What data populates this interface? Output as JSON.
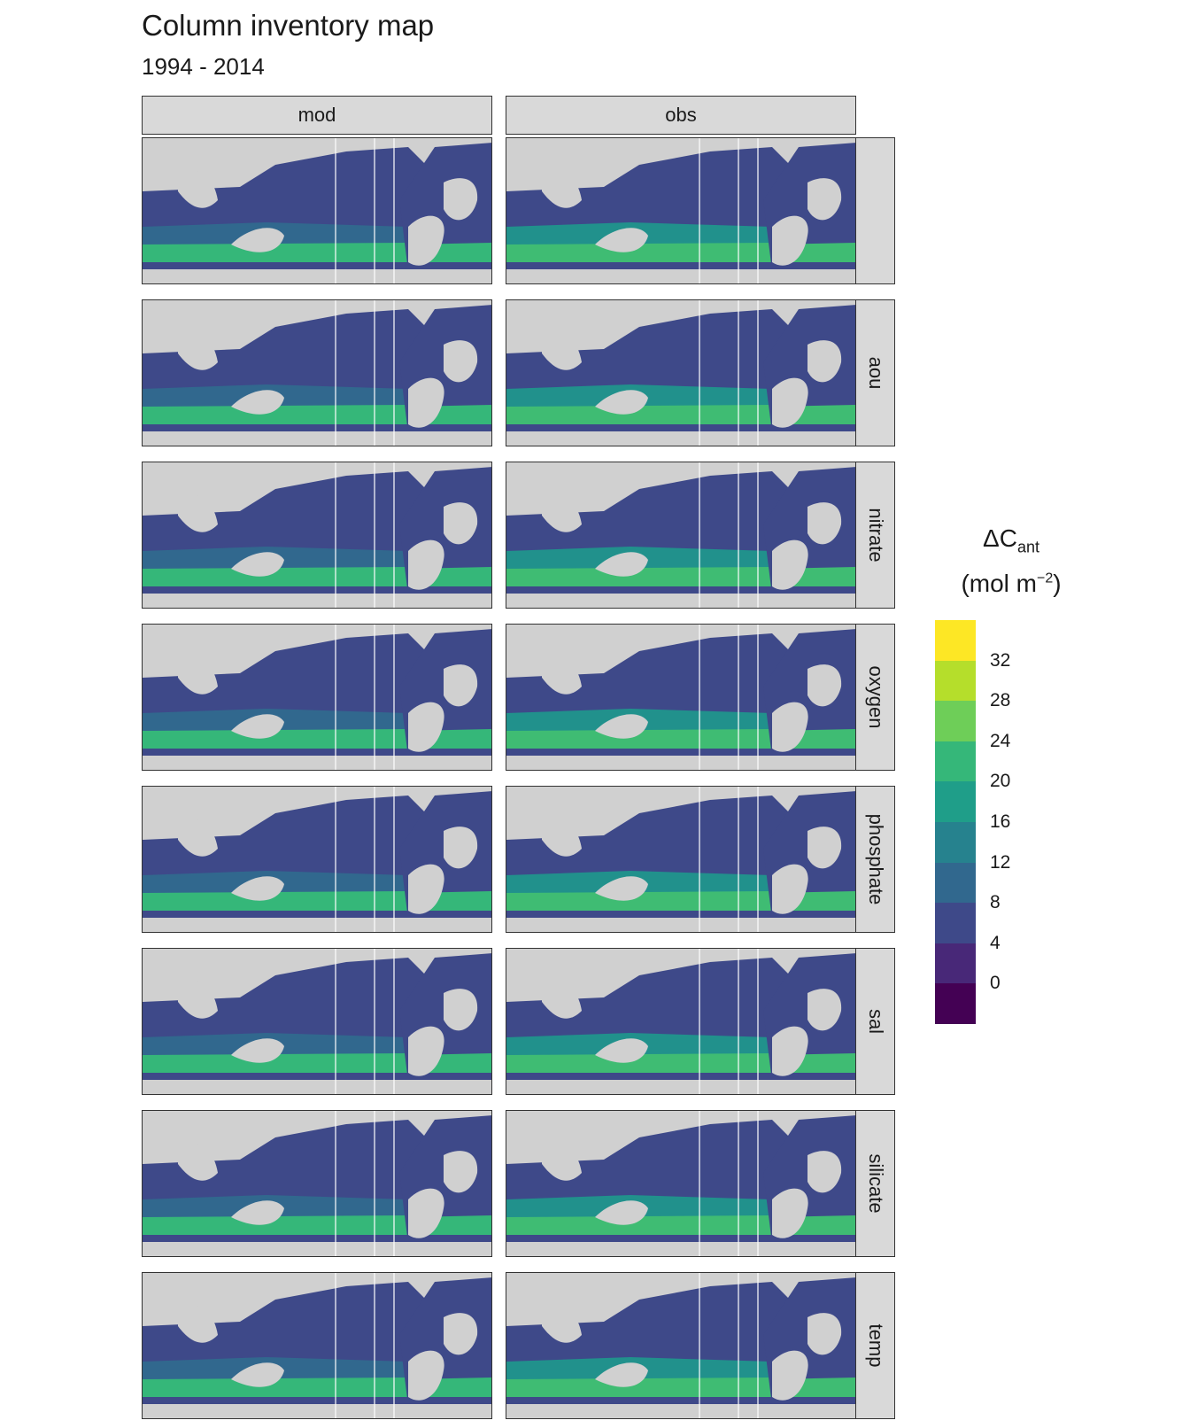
{
  "title": "Column inventory map",
  "subtitle": "1994 - 2014",
  "columns": [
    "mod",
    "obs"
  ],
  "rows": [
    "",
    "aou",
    "nitrate",
    "oxygen",
    "phosphate",
    "sal",
    "silicate",
    "temp"
  ],
  "legend": {
    "title_main": "ΔC",
    "title_sub": "ant",
    "unit_prefix": "(mol m",
    "unit_sup": "−2",
    "unit_suffix": ")",
    "ticks": [
      "32",
      "28",
      "24",
      "20",
      "16",
      "12",
      "8",
      "4",
      "0"
    ],
    "colors": [
      "#fde725",
      "#b5de2b",
      "#6ece58",
      "#35b779",
      "#1f9e89",
      "#26828e",
      "#31688e",
      "#3e4989",
      "#482878",
      "#440154"
    ]
  },
  "colors": {
    "land": "#d0d0d0",
    "ocean_low": "#3e4989",
    "ocean_mid": "#31688e",
    "ocean_high": "#35b779"
  }
}
